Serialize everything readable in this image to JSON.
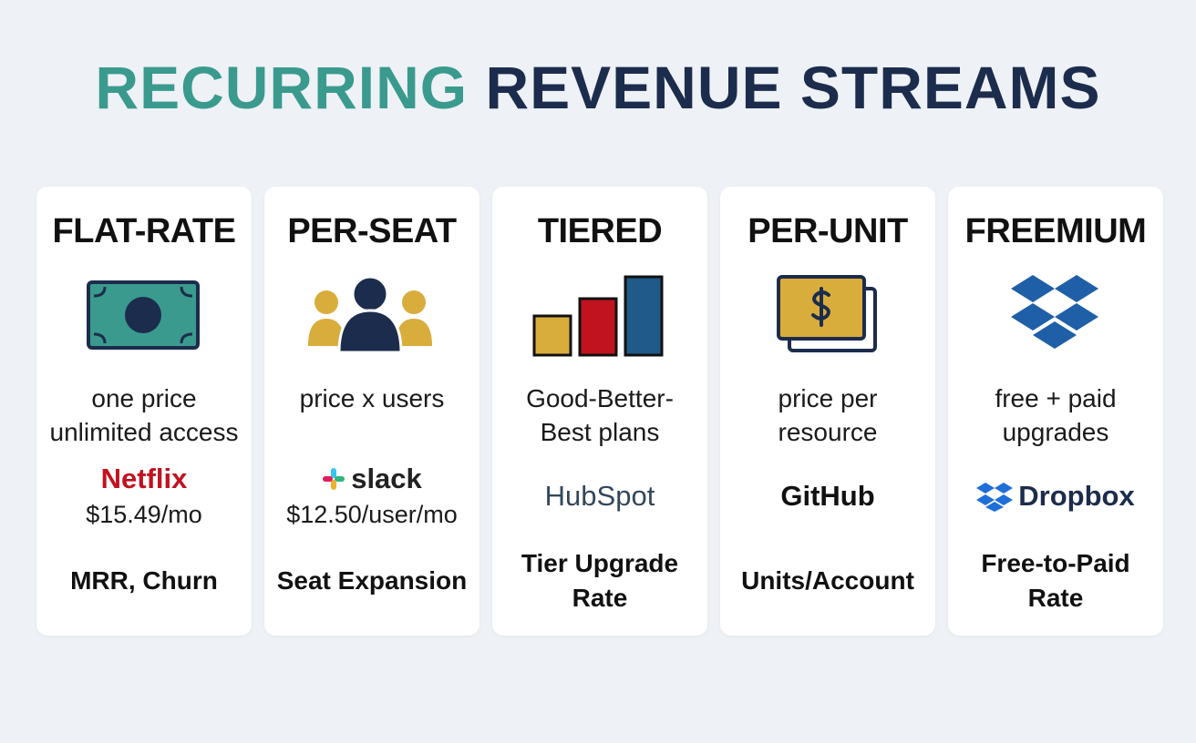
{
  "title": {
    "part1": "RECURRING",
    "part2": "REVENUE STREAMS"
  },
  "cards": [
    {
      "name": "FLAT-RATE",
      "description": [
        "one price",
        "unlimited access"
      ],
      "brand": "Netflix",
      "price": "$15.49/mo",
      "metric": [
        "MRR, Churn"
      ]
    },
    {
      "name": "PER-SEAT",
      "description": [
        "price x users"
      ],
      "brand": "slack",
      "price": "$12.50/user/mo",
      "metric": [
        "Seat Expansion"
      ]
    },
    {
      "name": "TIERED",
      "description": [
        "Good-Better-",
        "Best plans"
      ],
      "brand": "HubSpot",
      "metric": [
        "Tier Upgrade",
        "Rate"
      ]
    },
    {
      "name": "PER-UNIT",
      "description": [
        "price per",
        "resource"
      ],
      "brand": "GitHub",
      "metric": [
        "Units/Account"
      ]
    },
    {
      "name": "FREEMIUM",
      "description": [
        "free + paid",
        "upgrades"
      ],
      "brand": "Dropbox",
      "metric": [
        "Free-to-Paid",
        "Rate"
      ]
    }
  ]
}
